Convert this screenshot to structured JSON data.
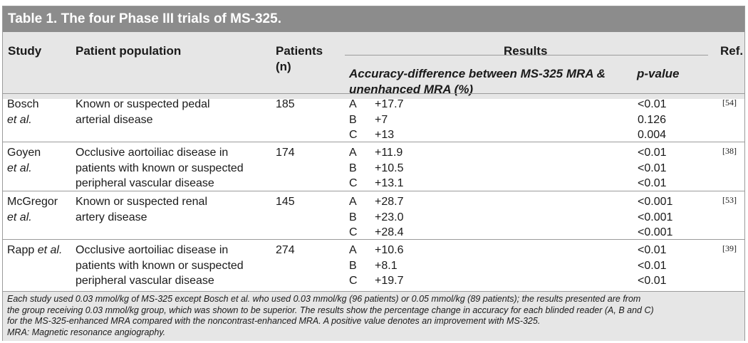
{
  "title": "Table 1. The four Phase III trials of MS-325.",
  "headers": {
    "study": "Study",
    "population": "Patient population",
    "patients_line1": "Patients",
    "patients_line2": "(n)",
    "results": "Results",
    "ref": "Ref.",
    "accuracy_line1": "Accuracy-difference between MS-325 MRA &",
    "accuracy_line2": "unenhanced MRA (%)",
    "pvalue": "p-value"
  },
  "rows": [
    {
      "study_name": "Bosch",
      "study_suffix": "et al.",
      "population_line1": "Known or suspected pedal",
      "population_line2": "arterial disease",
      "population_line3": "",
      "patients": "185",
      "readers": [
        "A",
        "B",
        "C"
      ],
      "accuracy": [
        "+17.7",
        "+7",
        "+13"
      ],
      "pvalues": [
        "<0.01",
        "0.126",
        "0.004"
      ],
      "ref": "[54]"
    },
    {
      "study_name": "Goyen",
      "study_suffix": "et al.",
      "population_line1": "Occlusive aortoiliac disease in",
      "population_line2": "patients with known or suspected",
      "population_line3": "peripheral vascular disease",
      "patients": "174",
      "readers": [
        "A",
        "B",
        "C"
      ],
      "accuracy": [
        "+11.9",
        "+10.5",
        "+13.1"
      ],
      "pvalues": [
        "<0.01",
        "<0.01",
        "<0.01"
      ],
      "ref": "[38]"
    },
    {
      "study_name": "McGregor",
      "study_suffix": "et al.",
      "population_line1": "Known or suspected renal",
      "population_line2": "artery disease",
      "population_line3": "",
      "patients": "145",
      "readers": [
        "A",
        "B",
        "C"
      ],
      "accuracy": [
        "+28.7",
        "+23.0",
        "+28.4"
      ],
      "pvalues": [
        "<0.001",
        "<0.001",
        "<0.001"
      ],
      "ref": "[53]"
    },
    {
      "study_name": "Rapp",
      "study_suffix": "et al.",
      "population_line1": "Occlusive aortoiliac disease in",
      "population_line2": "patients with known or suspected",
      "population_line3": "peripheral vascular disease",
      "patients": "274",
      "readers": [
        "A",
        "B",
        "C"
      ],
      "accuracy": [
        "+10.6",
        "+8.1",
        "+19.7"
      ],
      "pvalues": [
        "<0.01",
        "<0.01",
        "<0.01"
      ],
      "ref": "[39]"
    }
  ],
  "footnote": {
    "line1": "Each study used 0.03 mmol/kg of MS-325 except Bosch et al. who used 0.03 mmol/kg (96 patients) or 0.05 mmol/kg (89 patients); the results presented are from",
    "line2": "the group receiving 0.03 mmol/kg group, which was shown to be superior. The results show the percentage change in accuracy for each blinded reader (A, B and C)",
    "line3": "for the MS-325-enhanced MRA compared with the noncontrast-enhanced MRA. A positive value denotes an improvement with MS-325.",
    "line4": "MRA: Magnetic resonance angiography."
  }
}
